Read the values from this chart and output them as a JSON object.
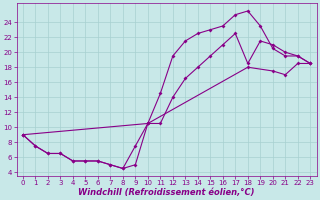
{
  "background_color": "#c8e8e8",
  "grid_color": "#a8d0d0",
  "line_color": "#880088",
  "marker": "D",
  "markersize": 2.0,
  "linewidth": 0.8,
  "xlabel": "Windchill (Refroidissement éolien,°C)",
  "xlabel_fontsize": 6,
  "xlim": [
    -0.5,
    23.5
  ],
  "ylim": [
    3.5,
    26.5
  ],
  "xticks": [
    0,
    1,
    2,
    3,
    4,
    5,
    6,
    7,
    8,
    9,
    10,
    11,
    12,
    13,
    14,
    15,
    16,
    17,
    18,
    19,
    20,
    21,
    22,
    23
  ],
  "yticks": [
    4,
    6,
    8,
    10,
    12,
    14,
    16,
    18,
    20,
    22,
    24
  ],
  "tick_fontsize": 5.0,
  "line1_x": [
    0,
    1,
    2,
    3,
    4,
    5,
    6,
    7,
    8,
    9,
    10,
    11,
    12,
    13,
    14,
    15,
    16,
    17,
    18,
    19,
    20,
    21,
    22,
    23
  ],
  "line1_y": [
    9.0,
    7.5,
    6.5,
    6.5,
    5.5,
    5.5,
    5.5,
    5.0,
    4.5,
    7.5,
    10.5,
    14.5,
    19.5,
    21.5,
    22.5,
    23.0,
    23.5,
    25.0,
    25.5,
    23.5,
    20.5,
    19.5,
    19.5,
    18.5
  ],
  "line2_x": [
    0,
    1,
    2,
    3,
    4,
    5,
    6,
    7,
    8,
    9,
    10,
    11,
    12,
    13,
    14,
    15,
    16,
    17,
    18,
    19,
    20,
    21,
    22,
    23
  ],
  "line2_y": [
    9.0,
    7.5,
    6.5,
    6.5,
    5.5,
    5.5,
    5.5,
    5.0,
    4.5,
    5.0,
    10.5,
    10.5,
    14.0,
    16.5,
    18.0,
    19.5,
    21.0,
    22.5,
    18.5,
    21.5,
    21.0,
    20.0,
    19.5,
    18.5
  ],
  "line3_x": [
    0,
    10,
    18,
    20,
    21,
    22,
    23
  ],
  "line3_y": [
    9.0,
    10.5,
    18.0,
    17.5,
    17.0,
    18.5,
    18.5
  ]
}
